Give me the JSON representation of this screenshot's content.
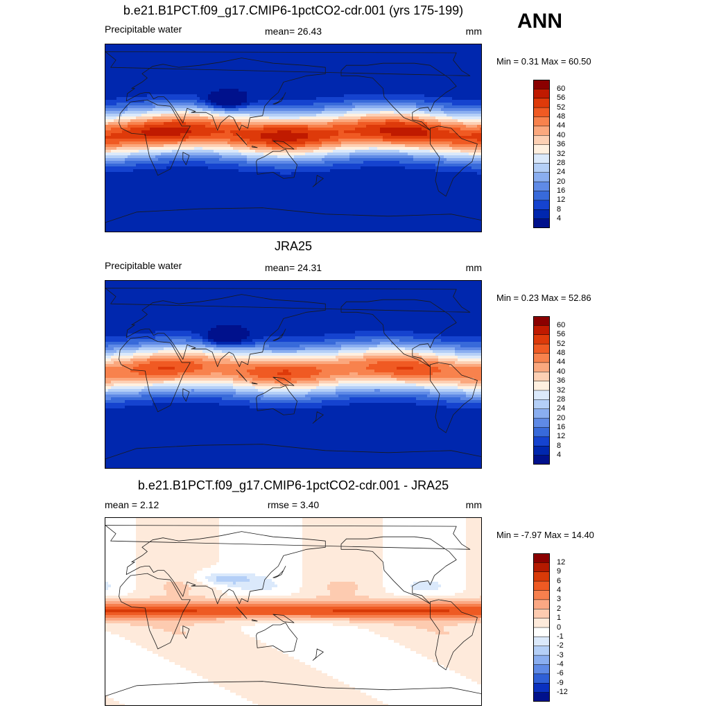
{
  "season": "ANN",
  "panels": [
    {
      "title": "b.e21.B1PCT.f09_g17.CMIP6-1pctCO2-cdr.001 (yrs 175-199)",
      "left_label": "Precipitable water",
      "center_label": "mean=  26.43",
      "units": "mm",
      "minmax": "Min =   0.31 Max =  60.50",
      "variant": "model",
      "colorbar": {
        "labels": [
          "60",
          "56",
          "52",
          "48",
          "44",
          "40",
          "36",
          "32",
          "28",
          "24",
          "20",
          "16",
          "12",
          "8",
          "4"
        ],
        "colors": [
          "#8b0000",
          "#c01a00",
          "#de3a0a",
          "#f05a23",
          "#f8824d",
          "#fba87e",
          "#fdd0b4",
          "#fff0e0",
          "#dbe9fb",
          "#b4cff7",
          "#8aaef0",
          "#5f8ae6",
          "#386ada",
          "#1543cf",
          "#0027ae",
          "#00118c"
        ]
      }
    },
    {
      "title": "JRA25",
      "left_label": "Precipitable water",
      "center_label": "mean=  24.31",
      "units": "mm",
      "minmax": "Min =   0.23 Max =  52.86",
      "variant": "obs",
      "colorbar": {
        "labels": [
          "60",
          "56",
          "52",
          "48",
          "44",
          "40",
          "36",
          "32",
          "28",
          "24",
          "20",
          "16",
          "12",
          "8",
          "4"
        ],
        "colors": [
          "#8b0000",
          "#c01a00",
          "#de3a0a",
          "#f05a23",
          "#f8824d",
          "#fba87e",
          "#fdd0b4",
          "#fff0e0",
          "#dbe9fb",
          "#b4cff7",
          "#8aaef0",
          "#5f8ae6",
          "#386ada",
          "#1543cf",
          "#0027ae",
          "#00118c"
        ]
      }
    },
    {
      "title": "b.e21.B1PCT.f09_g17.CMIP6-1pctCO2-cdr.001 - JRA25",
      "left_label": "mean =   2.12",
      "center_label": "rmse =   3.40",
      "units": "mm",
      "minmax": "Min =  -7.97 Max =  14.40",
      "variant": "diff",
      "colorbar": {
        "labels": [
          "12",
          "9",
          "6",
          "4",
          "3",
          "2",
          "1",
          "0",
          "-1",
          "-2",
          "-3",
          "-4",
          "-6",
          "-9",
          "-12"
        ],
        "colors": [
          "#8b0000",
          "#b41a00",
          "#d83a08",
          "#ee5a23",
          "#f6804e",
          "#fba884",
          "#fdcbb0",
          "#feeadb",
          "#ffffff",
          "#dbe9fb",
          "#b4cff7",
          "#8aaef0",
          "#5f8ae6",
          "#2f5fd6",
          "#0a30bf",
          "#00118c"
        ]
      }
    }
  ]
}
